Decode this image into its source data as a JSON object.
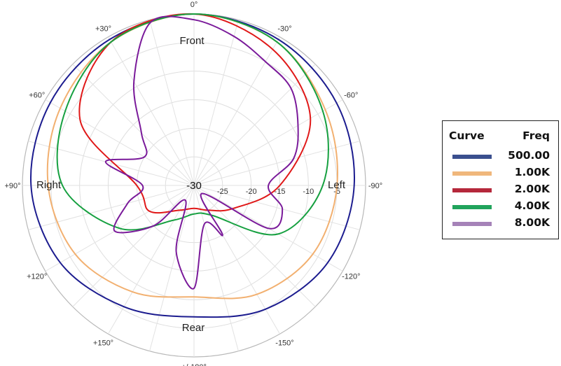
{
  "chart_data": {
    "type": "polar",
    "title": "",
    "angle_labels": [
      "0°",
      "-30°",
      "-60°",
      "-90°",
      "-120°",
      "-150°",
      "+/-180°",
      "+150°",
      "+120°",
      "+90°",
      "+60°",
      "+30°"
    ],
    "radial_ticks": [
      "-30",
      "-25",
      "-20",
      "-15",
      "-10",
      "-5"
    ],
    "r_range": [
      -30,
      0
    ],
    "direction_labels": {
      "front": "Front",
      "rear": "Rear",
      "left": "Left",
      "right": "Right"
    },
    "grid": true,
    "legend": {
      "position": "right",
      "header_curve": "Curve",
      "header_freq": "Freq"
    },
    "series": [
      {
        "name": "500.00",
        "color": "#1c1c8f",
        "angles": [
          0,
          30,
          60,
          90,
          120,
          150,
          180,
          210,
          240,
          270,
          300,
          330
        ],
        "values": [
          0,
          -0.5,
          -1.2,
          -2,
          -3,
          -5,
          -7,
          -5.5,
          -3,
          -1.5,
          -1,
          -0.5
        ]
      },
      {
        "name": "1.00K",
        "color": "#f2b070",
        "angles": [
          0,
          30,
          60,
          90,
          120,
          150,
          180,
          210,
          240,
          270,
          300,
          330
        ],
        "values": [
          0,
          -1,
          -3.5,
          -5,
          -6,
          -8,
          -10.5,
          -8.5,
          -6,
          -4.5,
          -3,
          -1
        ]
      },
      {
        "name": "2.00K",
        "color": "#e01818",
        "angles": [
          0,
          30,
          60,
          90,
          120,
          150,
          180,
          210,
          240,
          270,
          300,
          330
        ],
        "values": [
          0,
          -2.5,
          -6.5,
          -15,
          -22,
          -25,
          -26,
          -25,
          -21,
          -20,
          -7,
          -1
        ]
      },
      {
        "name": "4.00K",
        "color": "#16a040",
        "angles": [
          0,
          30,
          60,
          90,
          120,
          150,
          180,
          210,
          240,
          270,
          300,
          330
        ],
        "values": [
          0,
          -1,
          -4,
          -7.5,
          -13,
          -24,
          -25,
          -23,
          -15,
          -7,
          -4,
          -1
        ]
      },
      {
        "name": "8.00K",
        "color": "#7a1a9a",
        "angles": [
          0,
          15,
          30,
          45,
          60,
          75,
          90,
          105,
          120,
          135,
          150,
          165,
          180,
          195,
          210,
          225,
          240,
          255,
          270,
          285,
          300,
          315,
          330,
          345
        ],
        "values": [
          -1,
          -3,
          -5,
          -6,
          -9,
          -12,
          -17,
          -14,
          -15,
          -28,
          -20,
          -23,
          -12,
          -18,
          -27,
          -20,
          -14,
          -18,
          -21,
          -14,
          -20,
          -17,
          -9,
          -0.5
        ]
      }
    ]
  }
}
